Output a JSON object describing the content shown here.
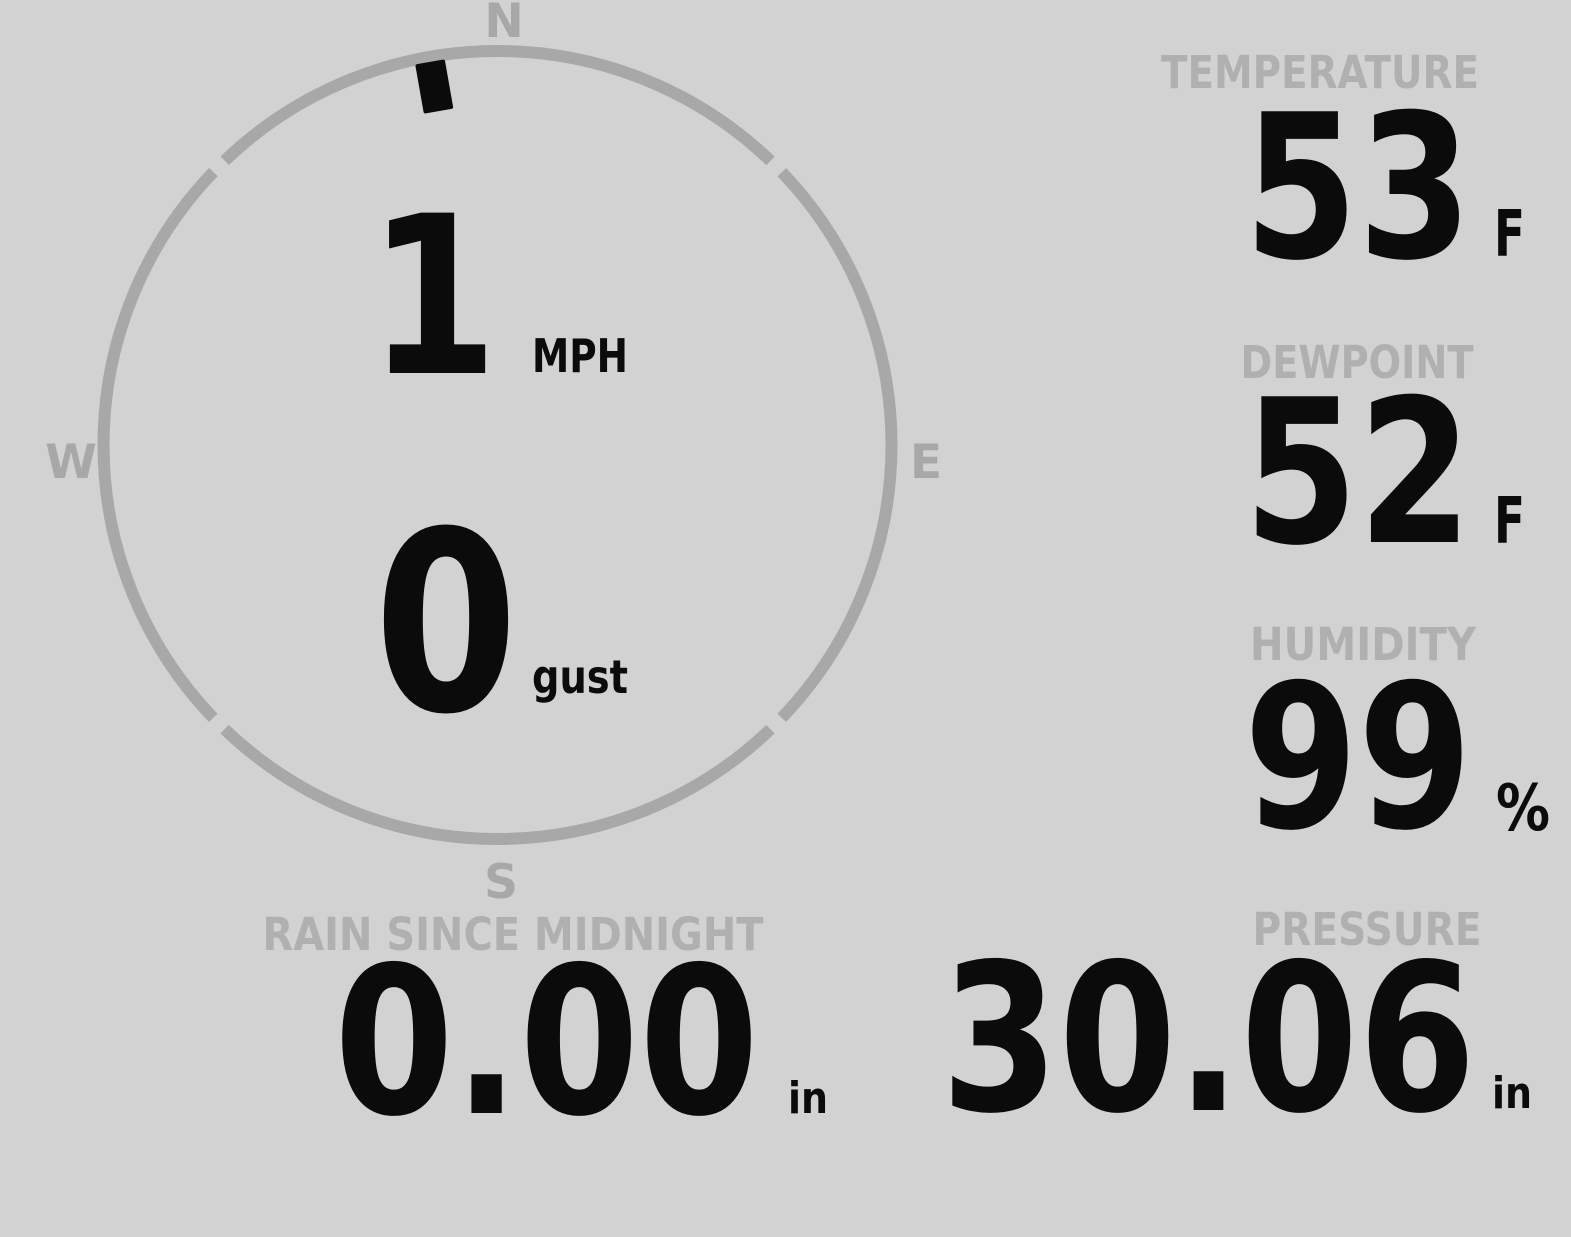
{
  "colors": {
    "bg": "#d2d2d2",
    "ring": "#a8a8a8",
    "label": "#b0b0b0",
    "ink": "#0b0b0b"
  },
  "wind": {
    "compass": {
      "n": "N",
      "e": "E",
      "s": "S",
      "w": "W"
    },
    "direction_degrees": 350,
    "speed_value": "1",
    "speed_unit": "MPH",
    "gust_value": "0",
    "gust_label": "gust"
  },
  "temperature": {
    "label": "TEMPERATURE",
    "value": "53",
    "unit": "F"
  },
  "dewpoint": {
    "label": "DEWPOINT",
    "value": "52",
    "unit": "F"
  },
  "humidity": {
    "label": "HUMIDITY",
    "value": "99",
    "unit": "%"
  },
  "rain": {
    "label": "RAIN SINCE MIDNIGHT",
    "value": "0.00",
    "unit": "in"
  },
  "pressure": {
    "label": "PRESSURE",
    "value": "30.06",
    "unit": "in"
  }
}
